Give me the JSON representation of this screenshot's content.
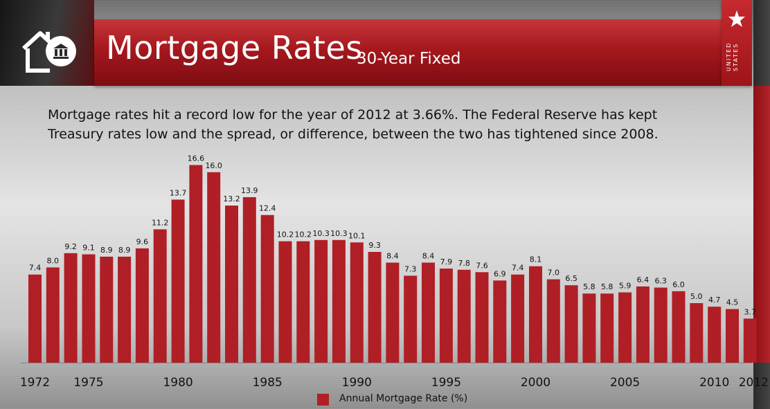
{
  "header": {
    "title": "Mortgage Rates",
    "subtitle": "30-Year Fixed",
    "flag_text": "UNITED STATES"
  },
  "description": {
    "line1": "Mortgage rates hit a record low for the year of 2012 at 3.66%. The Federal Reserve has kept",
    "line2": "Treasury rates low and the spread, or difference, between the two has tightened since 2008."
  },
  "colors": {
    "bar": "#b01f25",
    "banner": "#a5181d",
    "text": "#111111"
  },
  "icons": [
    "home-bank-icon",
    "star-icon"
  ],
  "chart_data": {
    "type": "bar",
    "title": "",
    "xlabel": "",
    "ylabel": "",
    "ylim": [
      0,
      17.5
    ],
    "grid": false,
    "legend_position": "bottom",
    "categories": [
      "1972",
      "1973",
      "1974",
      "1975",
      "1976",
      "1977",
      "1978",
      "1979",
      "1980",
      "1981",
      "1982",
      "1983",
      "1984",
      "1985",
      "1986",
      "1987",
      "1988",
      "1989",
      "1990",
      "1991",
      "1992",
      "1993",
      "1994",
      "1995",
      "1996",
      "1997",
      "1998",
      "1999",
      "2000",
      "2001",
      "2002",
      "2003",
      "2004",
      "2005",
      "2006",
      "2007",
      "2008",
      "2009",
      "2010",
      "2011",
      "2012"
    ],
    "tick_labels": [
      "1972",
      "1975",
      "1980",
      "1985",
      "1990",
      "1995",
      "2000",
      "2005",
      "2010",
      "2012"
    ],
    "series": [
      {
        "name": "Annual Mortgage Rate (%)",
        "values": [
          7.4,
          8.0,
          9.2,
          9.1,
          8.9,
          8.9,
          9.6,
          11.2,
          13.7,
          16.6,
          16.0,
          13.2,
          13.9,
          12.4,
          10.2,
          10.2,
          10.3,
          10.3,
          10.1,
          9.3,
          8.4,
          7.3,
          8.4,
          7.9,
          7.8,
          7.6,
          6.9,
          7.4,
          8.1,
          7.0,
          6.5,
          5.8,
          5.8,
          5.9,
          6.4,
          6.3,
          6.0,
          5.0,
          4.7,
          4.5,
          3.7
        ],
        "labels": [
          "7.4",
          "8.0",
          "9.2",
          "9.1",
          "8.9",
          "8.9",
          "9.6",
          "11.2",
          "13.7",
          "16.6",
          "16.0",
          "13.2",
          "13.9",
          "12.4",
          "10.2",
          "10.2",
          "10.3",
          "10.3",
          "10.1",
          "9.3",
          "8.4",
          "7.3",
          "8.4",
          "7.9",
          "7.8",
          "7.6",
          "6.9",
          "7.4",
          "8.1",
          "7.0",
          "6.5",
          "5.8",
          "5.8",
          "5.9",
          "6.4",
          "6.3",
          "6.0",
          "5.0",
          "4.7",
          "4.5",
          "3.7"
        ]
      }
    ]
  }
}
